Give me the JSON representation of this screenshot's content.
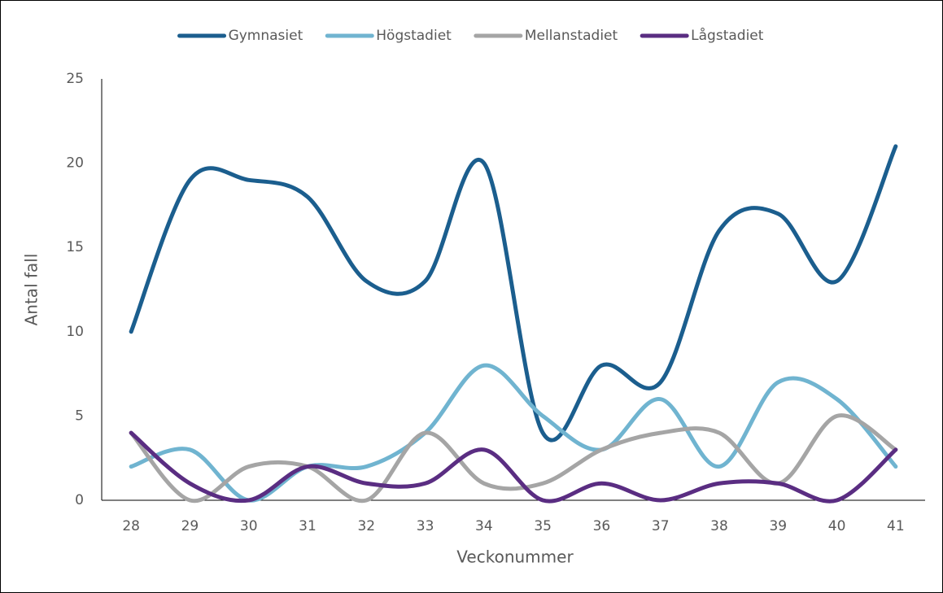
{
  "chart_data": {
    "type": "line",
    "x_label": "Veckonummer",
    "y_label": "Antal fall",
    "categories": [
      "28",
      "29",
      "30",
      "31",
      "32",
      "33",
      "34",
      "35",
      "36",
      "37",
      "38",
      "39",
      "40",
      "41"
    ],
    "series": [
      {
        "name": "Gymnasiet",
        "color": "#1b5e8e",
        "values": [
          10,
          19,
          19,
          18,
          13,
          13,
          20,
          4,
          8,
          7,
          16,
          17,
          13,
          21
        ]
      },
      {
        "name": "Högstadiet",
        "color": "#70b4d0",
        "values": [
          2,
          3,
          0,
          2,
          2,
          4,
          8,
          5,
          3,
          6,
          2,
          7,
          6,
          2
        ]
      },
      {
        "name": "Mellanstadiet",
        "color": "#a5a5a5",
        "values": [
          4,
          0,
          2,
          2,
          0,
          4,
          1,
          1,
          3,
          4,
          4,
          1,
          5,
          3
        ]
      },
      {
        "name": "Lågstadiet",
        "color": "#5a2d82",
        "values": [
          4,
          1,
          0,
          2,
          1,
          1,
          3,
          0,
          1,
          0,
          1,
          1,
          0,
          3
        ]
      }
    ],
    "ylim": [
      0,
      25
    ],
    "yticks": [
      0,
      5,
      10,
      15,
      20,
      25
    ],
    "grid": false,
    "smooth": true,
    "legend": "top"
  }
}
